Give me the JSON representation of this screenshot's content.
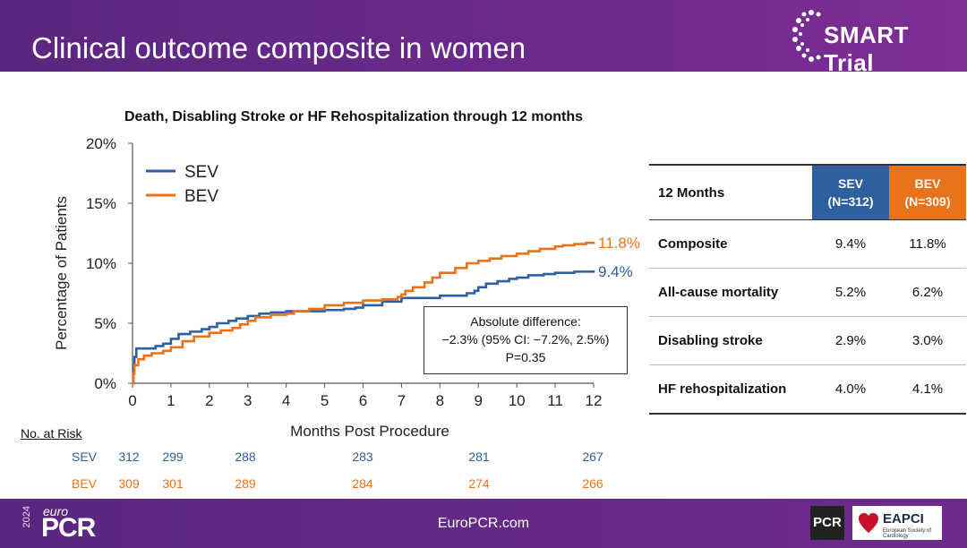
{
  "header": {
    "title": "Clinical outcome composite in women",
    "logo_text": "SMART Trial"
  },
  "chart_data": {
    "type": "line",
    "title": "Death, Disabling Stroke or HF Rehospitalization through 12 months",
    "xlabel": "Months Post Procedure",
    "ylabel": "Percentage of Patients",
    "xlim": [
      0,
      12
    ],
    "ylim": [
      0,
      20
    ],
    "x_ticks": [
      "0",
      "1",
      "2",
      "3",
      "4",
      "5",
      "6",
      "7",
      "8",
      "9",
      "10",
      "11",
      "12"
    ],
    "y_ticks": [
      "0%",
      "5%",
      "10%",
      "15%",
      "20%"
    ],
    "legend_position": "top-left",
    "series": [
      {
        "name": "SEV",
        "color": "#2e5f9e",
        "end_label": "9.4%",
        "x": [
          0,
          0.02,
          0.05,
          0.1,
          0.5,
          0.6,
          0.8,
          1.0,
          1.2,
          1.5,
          1.8,
          2.0,
          2.2,
          2.5,
          2.7,
          3.0,
          3.3,
          3.6,
          4.0,
          4.5,
          5.0,
          5.5,
          5.8,
          6.0,
          6.5,
          7.0,
          7.5,
          8.0,
          8.7,
          8.9,
          9.0,
          9.2,
          9.5,
          9.8,
          10.0,
          10.3,
          10.7,
          11.0,
          11.5,
          12.0
        ],
        "y": [
          0,
          1.5,
          2.2,
          2.9,
          2.9,
          3.1,
          3.3,
          3.7,
          4.1,
          4.3,
          4.5,
          4.7,
          5.0,
          5.2,
          5.4,
          5.6,
          5.8,
          5.9,
          6.0,
          6.0,
          6.1,
          6.2,
          6.3,
          6.5,
          6.8,
          7.1,
          7.1,
          7.3,
          7.5,
          7.7,
          8.0,
          8.3,
          8.5,
          8.7,
          8.8,
          9.0,
          9.1,
          9.2,
          9.3,
          9.4
        ]
      },
      {
        "name": "BEV",
        "color": "#e8731c",
        "end_label": "11.8%",
        "x": [
          0,
          0.02,
          0.05,
          0.15,
          0.3,
          0.5,
          0.8,
          1.0,
          1.3,
          1.6,
          2.0,
          2.3,
          2.6,
          2.8,
          3.0,
          3.2,
          3.6,
          4.0,
          4.2,
          4.6,
          5.0,
          5.5,
          6.0,
          6.5,
          6.9,
          7.0,
          7.1,
          7.3,
          7.6,
          7.8,
          8.0,
          8.4,
          8.7,
          9.0,
          9.3,
          9.6,
          10.0,
          10.3,
          10.6,
          11.0,
          11.2,
          11.5,
          11.8,
          12.0
        ],
        "y": [
          0,
          0.8,
          1.5,
          2.0,
          2.3,
          2.5,
          2.7,
          3.0,
          3.5,
          3.9,
          4.2,
          4.4,
          4.6,
          4.9,
          5.2,
          5.5,
          5.7,
          5.8,
          6.0,
          6.2,
          6.5,
          6.7,
          6.9,
          7.0,
          7.2,
          7.4,
          7.7,
          8.0,
          8.4,
          8.8,
          9.2,
          9.6,
          10.0,
          10.2,
          10.4,
          10.6,
          10.8,
          11.0,
          11.2,
          11.4,
          11.5,
          11.6,
          11.7,
          11.8
        ]
      }
    ],
    "annotation": {
      "line1": "Absolute difference:",
      "line2": "−2.3% (95% CI: −7.2%, 2.5%)",
      "line3": "P=0.35"
    }
  },
  "risk_table": {
    "title": "No. at Risk",
    "sev_label": "SEV",
    "bev_label": "BEV",
    "sev_values": [
      "312",
      "299",
      "288",
      "283",
      "281",
      "267"
    ],
    "bev_values": [
      "309",
      "301",
      "289",
      "284",
      "274",
      "266"
    ]
  },
  "summary_table": {
    "header": {
      "label": "12 Months",
      "sev_line1": "SEV",
      "sev_line2": "(N=312)",
      "bev_line1": "BEV",
      "bev_line2": "(N=309)"
    },
    "rows": [
      {
        "label": "Composite",
        "sev": "9.4%",
        "bev": "11.8%"
      },
      {
        "label": "All-cause mortality",
        "sev": "5.2%",
        "bev": "6.2%"
      },
      {
        "label": "Disabling stroke",
        "sev": "2.9%",
        "bev": "3.0%"
      },
      {
        "label": "HF rehospitalization",
        "sev": "4.0%",
        "bev": "4.1%"
      }
    ]
  },
  "footer": {
    "url": "EuroPCR.com",
    "europcr_year": "2024",
    "europcr_euro": "euro",
    "europcr_pcr": "PCR",
    "pcr_badge": "PCR",
    "eapci_text": "EAPCI",
    "eapci_sub": "European Society of Cardiology"
  },
  "colors": {
    "sev": "#2e5f9e",
    "bev": "#e8731c",
    "header_purple": "#6d2a8c"
  }
}
